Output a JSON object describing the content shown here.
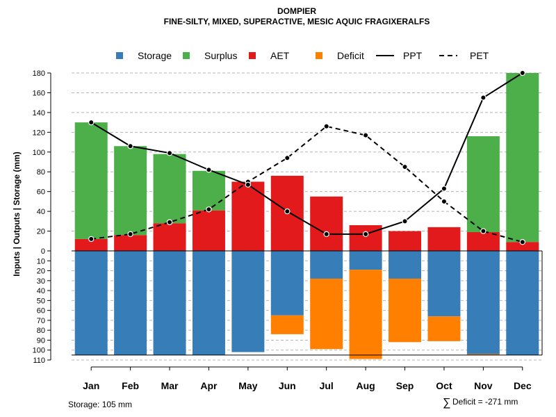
{
  "chart_data": {
    "type": "bar",
    "title": "DOMPIER",
    "subtitle": "FINE-SILTY, MIXED, SUPERACTIVE, MESIC AQUIC FRAGIXERALFS",
    "ylabel": "Inputs | Outputs | Storage    (mm)",
    "ylim_top": [
      0,
      180
    ],
    "ylim_bottom": [
      0,
      110
    ],
    "yticks_top": [
      "0",
      "20",
      "40",
      "60",
      "80",
      "100",
      "120",
      "140",
      "160",
      "180"
    ],
    "yticks_bottom": [
      "10",
      "20",
      "30",
      "40",
      "50",
      "60",
      "70",
      "80",
      "90",
      "100",
      "110"
    ],
    "categories": [
      "Jan",
      "Feb",
      "Mar",
      "Apr",
      "May",
      "Jun",
      "Jul",
      "Aug",
      "Sep",
      "Oct",
      "Nov",
      "Dec"
    ],
    "series": [
      {
        "name": "AET",
        "color": "#E31A1C",
        "values": [
          12,
          16,
          28,
          41,
          70,
          76,
          55,
          26,
          20,
          24,
          19,
          9
        ]
      },
      {
        "name": "Surplus",
        "color": "#4DAF4A",
        "values": [
          118,
          90,
          70,
          40,
          0,
          0,
          0,
          0,
          0,
          0,
          97,
          171
        ]
      },
      {
        "name": "Storage",
        "color": "#377EB8",
        "values": [
          105,
          105,
          105,
          105,
          102,
          65,
          28,
          19,
          28,
          66,
          104,
          105
        ]
      },
      {
        "name": "Deficit",
        "color": "#FF7F00",
        "values": [
          0,
          0,
          0,
          0,
          0,
          19,
          71,
          90,
          64,
          25,
          1,
          0
        ]
      },
      {
        "name": "PPT",
        "color": "#000000",
        "values": [
          130,
          106,
          99,
          82,
          67,
          40,
          17,
          17,
          30,
          63,
          155,
          180
        ]
      },
      {
        "name": "PET",
        "color": "#000000",
        "values": [
          12,
          17,
          29,
          42,
          70,
          94,
          126,
          117,
          85,
          50,
          20,
          9
        ]
      }
    ],
    "storage_capacity": 105,
    "legend": [
      "Storage",
      "Surplus",
      "AET",
      "Deficit",
      "PPT",
      "PET"
    ],
    "legend_position": "top"
  },
  "footer": {
    "storage_note": "Storage: 105 mm",
    "deficit_symbol": "∑",
    "deficit_note": "Deficit = -271 mm"
  }
}
